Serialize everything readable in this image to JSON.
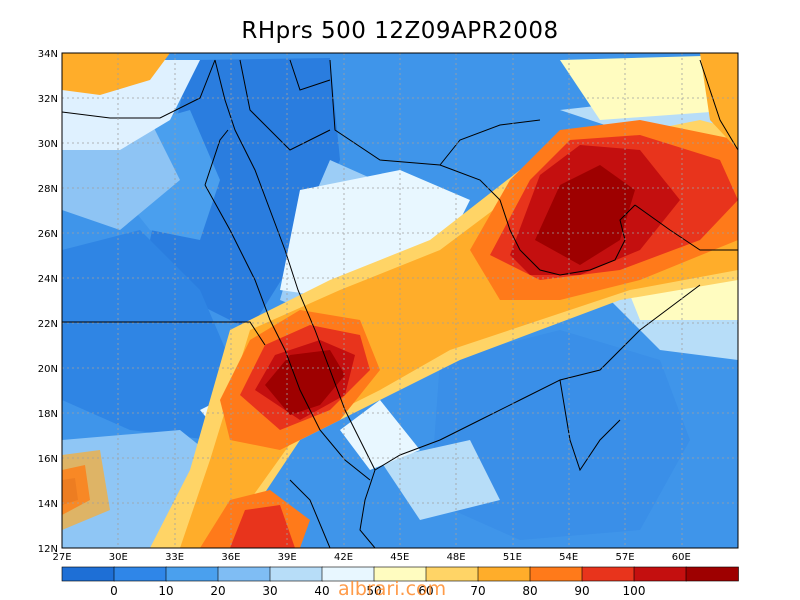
{
  "title": "RHprs 500 12Z09APR2008",
  "watermark": "albrari.com",
  "map": {
    "lat_labels": [
      "34N",
      "32N",
      "30N",
      "28N",
      "26N",
      "24N",
      "22N",
      "20N",
      "18N",
      "16N",
      "14N",
      "12N"
    ],
    "lon_labels": [
      "27E",
      "30E",
      "33E",
      "36E",
      "39E",
      "42E",
      "45E",
      "48E",
      "51E",
      "54E",
      "57E",
      "60E"
    ]
  },
  "colorbar": {
    "colors": [
      "#1e6fd6",
      "#2f86e8",
      "#4aa0ee",
      "#7fbdf4",
      "#b7ddf8",
      "#e8f7ff",
      "#fffcc0",
      "#ffd466",
      "#ffad2a",
      "#ff7a1a",
      "#e8341c",
      "#c40f0f",
      "#9e0000"
    ],
    "labels": [
      "0",
      "10",
      "20",
      "30",
      "40",
      "50",
      "60",
      "70",
      "80",
      "90",
      "100"
    ]
  }
}
